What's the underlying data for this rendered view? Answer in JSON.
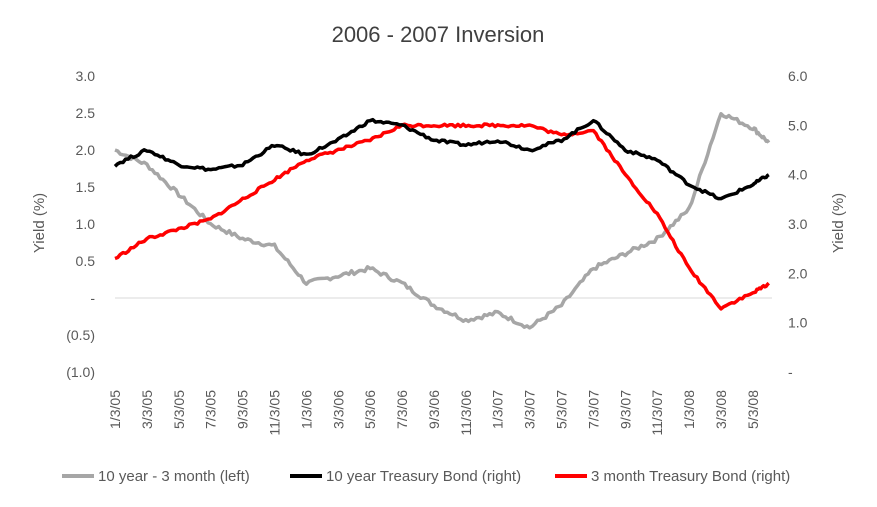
{
  "chart_data": {
    "type": "line",
    "title": "2006 - 2007 Inversion",
    "y_left": {
      "label": "Yield (%)",
      "min": -1.0,
      "max": 3.0,
      "ticks": [
        {
          "value": 3.0,
          "label": "3.0"
        },
        {
          "value": 2.5,
          "label": "2.5"
        },
        {
          "value": 2.0,
          "label": "2.0"
        },
        {
          "value": 1.5,
          "label": "1.5"
        },
        {
          "value": 1.0,
          "label": "1.0"
        },
        {
          "value": 0.5,
          "label": "0.5"
        },
        {
          "value": 0.0,
          "label": "-"
        },
        {
          "value": -0.5,
          "label": "(0.5)"
        },
        {
          "value": -1.0,
          "label": "(1.0)"
        }
      ]
    },
    "y_right": {
      "label": "Yield (%)",
      "min": 0,
      "max": 6,
      "ticks": [
        {
          "value": 6,
          "label": "6.0"
        },
        {
          "value": 5,
          "label": "5.0"
        },
        {
          "value": 4,
          "label": "4.0"
        },
        {
          "value": 3,
          "label": "3.0"
        },
        {
          "value": 2,
          "label": "2.0"
        },
        {
          "value": 1,
          "label": "1.0"
        },
        {
          "value": 0,
          "label": "-"
        }
      ]
    },
    "x_axis": {
      "ticks": [
        "1/3/05",
        "3/3/05",
        "5/3/05",
        "7/3/05",
        "9/3/05",
        "11/3/05",
        "1/3/06",
        "3/3/06",
        "5/3/06",
        "7/3/06",
        "9/3/06",
        "11/3/06",
        "1/3/07",
        "3/3/07",
        "5/3/07",
        "7/3/07",
        "9/3/07",
        "11/3/07",
        "1/3/08",
        "3/3/08",
        "5/3/08"
      ]
    },
    "legend_position": "bottom",
    "series": [
      {
        "name": "10 year - 3 month (left)",
        "axis": "left",
        "color": "#a6a6a6",
        "x": [
          "1/3/05",
          "3/3/05",
          "5/3/05",
          "7/3/05",
          "9/3/05",
          "11/3/05",
          "1/3/06",
          "3/3/06",
          "5/3/06",
          "7/3/06",
          "9/3/06",
          "11/3/06",
          "1/3/07",
          "3/3/07",
          "5/3/07",
          "7/3/07",
          "9/3/07",
          "11/3/07",
          "1/3/08",
          "3/3/08",
          "5/3/08",
          "6/3/08"
        ],
        "values": [
          2.0,
          1.8,
          1.4,
          1.0,
          0.8,
          0.7,
          0.2,
          0.3,
          0.4,
          0.2,
          -0.1,
          -0.3,
          -0.2,
          -0.4,
          -0.1,
          0.4,
          0.6,
          0.8,
          1.2,
          2.5,
          2.3,
          2.1
        ]
      },
      {
        "name": "10 year Treasury Bond (right)",
        "axis": "right",
        "color": "#000000",
        "x": [
          "1/3/05",
          "3/3/05",
          "5/3/05",
          "7/3/05",
          "9/3/05",
          "11/3/05",
          "1/3/06",
          "3/3/06",
          "5/3/06",
          "7/3/06",
          "9/3/06",
          "11/3/06",
          "1/3/07",
          "3/3/07",
          "5/3/07",
          "7/3/07",
          "9/3/07",
          "11/3/07",
          "1/3/08",
          "3/3/08",
          "5/3/08",
          "6/3/08"
        ],
        "values": [
          4.2,
          4.5,
          4.2,
          4.1,
          4.2,
          4.6,
          4.4,
          4.7,
          5.1,
          5.0,
          4.7,
          4.6,
          4.7,
          4.5,
          4.7,
          5.1,
          4.5,
          4.3,
          3.8,
          3.5,
          3.8,
          4.0
        ]
      },
      {
        "name": "3 month Treasury Bond (right)",
        "axis": "right",
        "color": "#ff0000",
        "x": [
          "1/3/05",
          "3/3/05",
          "5/3/05",
          "7/3/05",
          "9/3/05",
          "11/3/05",
          "1/3/06",
          "3/3/06",
          "5/3/06",
          "7/3/06",
          "9/3/06",
          "11/3/06",
          "1/3/07",
          "3/3/07",
          "5/3/07",
          "7/3/07",
          "9/3/07",
          "11/3/07",
          "1/3/08",
          "3/3/08",
          "5/3/08",
          "6/3/08"
        ],
        "values": [
          2.3,
          2.7,
          2.9,
          3.1,
          3.5,
          3.9,
          4.3,
          4.5,
          4.7,
          5.0,
          5.0,
          5.0,
          5.0,
          5.0,
          4.8,
          4.9,
          4.0,
          3.2,
          2.1,
          1.3,
          1.6,
          1.8
        ]
      }
    ]
  }
}
